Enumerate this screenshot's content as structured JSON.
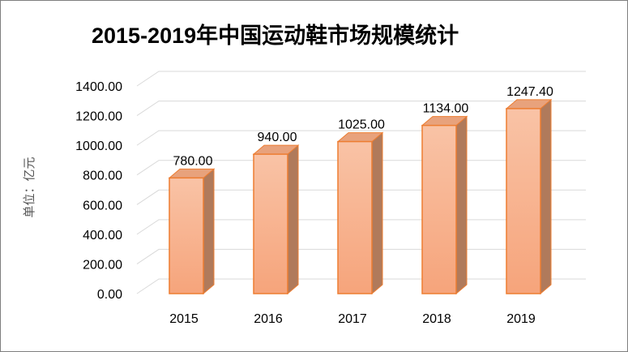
{
  "chart_data": {
    "type": "bar",
    "title": "2015-2019年中国运动鞋市场规模统计",
    "ylabel": "单位：亿元",
    "xlabel": "",
    "categories": [
      "2015",
      "2016",
      "2017",
      "2018",
      "2019"
    ],
    "values": [
      780.0,
      940.0,
      1025.0,
      1134.0,
      1247.4
    ],
    "data_labels": [
      "780.00",
      "940.00",
      "1025.00",
      "1134.00",
      "1247.40"
    ],
    "ylim": [
      0,
      1400
    ],
    "yticks": [
      "0.00",
      "200.00",
      "400.00",
      "600.00",
      "800.00",
      "1000.00",
      "1200.00",
      "1400.00"
    ],
    "grid": true,
    "style": "3d-column",
    "colors": {
      "bar_top_face": "#f9c3a6",
      "bar_bottom_face": "#f6a47b",
      "bar_edge": "#ed7d31",
      "bar_side": "#b07a5b",
      "bar_top": "#e8a27c",
      "grid": "#d9d9d9"
    }
  }
}
